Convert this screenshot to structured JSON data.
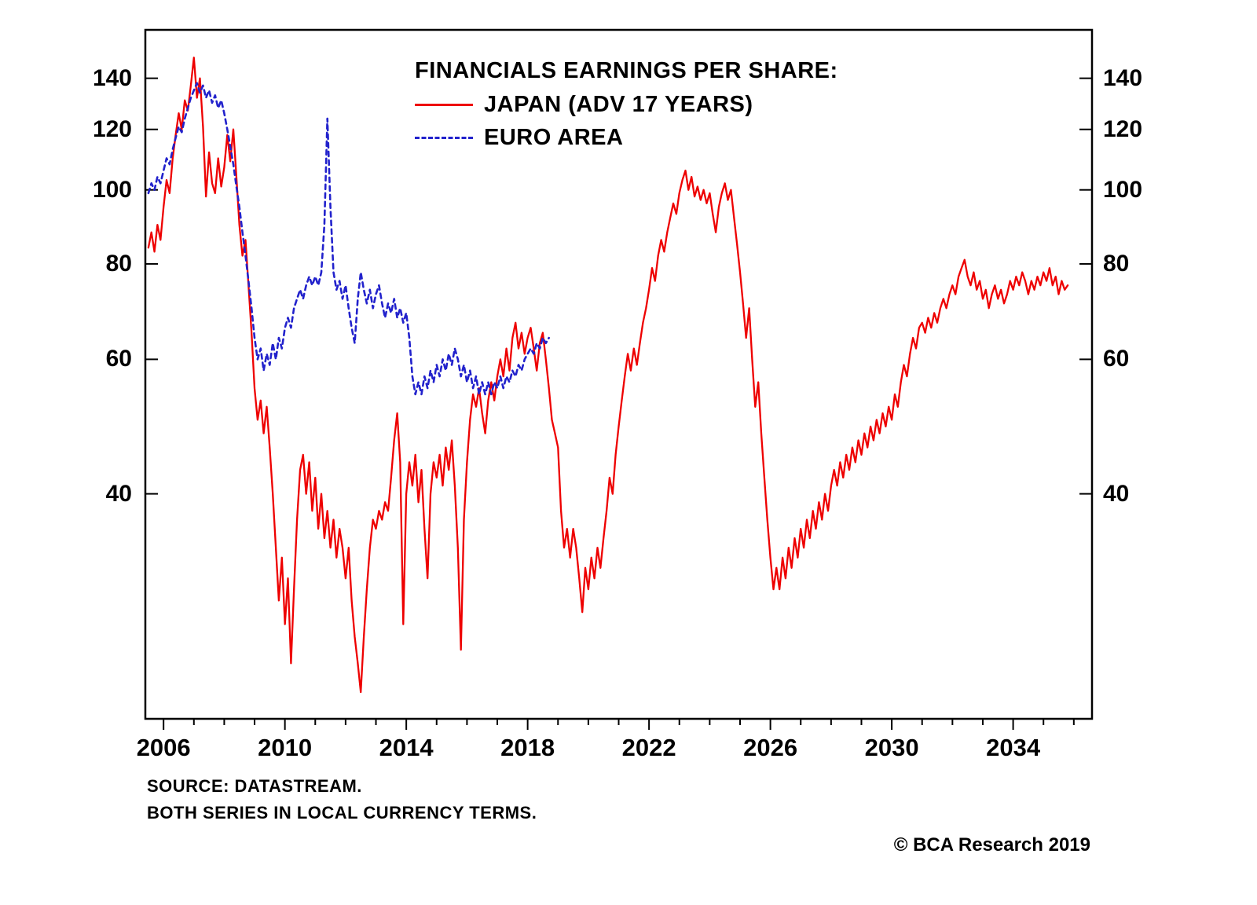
{
  "page": {
    "background": "#ffffff",
    "text_color": "#000000"
  },
  "legend": {
    "title": "FINANCIALS EARNINGS PER SHARE:",
    "series": [
      {
        "label": "JAPAN (ADV 17 YEARS)",
        "color": "#ee0000",
        "style": "solid"
      },
      {
        "label": "EURO AREA",
        "color": "#2222cc",
        "style": "dashed"
      }
    ]
  },
  "footer": {
    "source_line1": "SOURCE: DATASTREAM.",
    "source_line2": "BOTH SERIES IN LOCAL CURRENCY TERMS.",
    "copyright": "© BCA Research 2019"
  },
  "chart_data": {
    "type": "line",
    "title": "FINANCIALS EARNINGS PER SHARE:",
    "xlabel": "",
    "ylabel": "",
    "yscale": "log",
    "grid": false,
    "legend_position": "top-center-inside",
    "xlim": [
      2005.4,
      2036.6
    ],
    "ylim": [
      20.3,
      162
    ],
    "xticks": [
      2006,
      2010,
      2014,
      2018,
      2022,
      2026,
      2030,
      2034
    ],
    "yticks": [
      40,
      60,
      80,
      100,
      120,
      140
    ],
    "series": [
      {
        "key": "japan",
        "name": "JAPAN (ADV 17 YEARS)",
        "color": "#ee0000",
        "dash": null,
        "x_start": 2005.5,
        "x_step": 0.1,
        "values": [
          84,
          88,
          83,
          90,
          86,
          95,
          103,
          99,
          110,
          118,
          126,
          120,
          131,
          127,
          137,
          149,
          132,
          140,
          121,
          98,
          112,
          102,
          99,
          110,
          101,
          107,
          118,
          109,
          120,
          104,
          90,
          82,
          86,
          75,
          65,
          55,
          50,
          53,
          48,
          52,
          46,
          40,
          34,
          29,
          33,
          27,
          31,
          24,
          30,
          37,
          43,
          45,
          40,
          44,
          38,
          42,
          36,
          40,
          35,
          38,
          34,
          37,
          33,
          36,
          34,
          31,
          34,
          29,
          26,
          24,
          22,
          26,
          30,
          34,
          37,
          36,
          38,
          37,
          39,
          38,
          42,
          47,
          51,
          44,
          27,
          40,
          44,
          41,
          45,
          39,
          43,
          36,
          31,
          40,
          44,
          42,
          45,
          41,
          46,
          43,
          47,
          41,
          34,
          25,
          37,
          44,
          50,
          54,
          52,
          55,
          51,
          48,
          53,
          56,
          53,
          57,
          60,
          57,
          62,
          58,
          64,
          67,
          62,
          65,
          61,
          64,
          66,
          62,
          58,
          63,
          65,
          60,
          55,
          50,
          48,
          46,
          38,
          34,
          36,
          33,
          36,
          34,
          31,
          28,
          32,
          30,
          33,
          31,
          34,
          32,
          35,
          38,
          42,
          40,
          45,
          49,
          53,
          57,
          61,
          58,
          62,
          59,
          63,
          67,
          70,
          74,
          79,
          76,
          82,
          86,
          83,
          88,
          92,
          96,
          93,
          99,
          103,
          106,
          100,
          104,
          98,
          101,
          97,
          100,
          96,
          99,
          93,
          88,
          95,
          99,
          102,
          97,
          100,
          92,
          85,
          78,
          71,
          64,
          70,
          60,
          52,
          56,
          48,
          42,
          37,
          33,
          30,
          32,
          30,
          33,
          31,
          34,
          32,
          35,
          33,
          36,
          34,
          37,
          35,
          38,
          36,
          39,
          37,
          40,
          38,
          41,
          43,
          41,
          44,
          42,
          45,
          43,
          46,
          44,
          47,
          45,
          48,
          46,
          49,
          47,
          50,
          48,
          51,
          49,
          52,
          50,
          54,
          52,
          56,
          59,
          57,
          61,
          64,
          62,
          66,
          67,
          65,
          68,
          66,
          69,
          67,
          70,
          72,
          70,
          73,
          75,
          73,
          77,
          79,
          81,
          77,
          75,
          78,
          74,
          76,
          72,
          74,
          70,
          73,
          75,
          72,
          74,
          71,
          73,
          76,
          74,
          77,
          75,
          78,
          76,
          73,
          76,
          74,
          77,
          75,
          78,
          76,
          79,
          75,
          77,
          73,
          76,
          74,
          75
        ]
      },
      {
        "key": "euro_area",
        "name": "EURO AREA",
        "color": "#2222cc",
        "dash": "6 5",
        "x_start": 2005.5,
        "x_step": 0.1,
        "values": [
          99,
          102,
          100,
          104,
          102,
          106,
          110,
          108,
          113,
          117,
          121,
          119,
          124,
          128,
          132,
          135,
          138,
          134,
          137,
          132,
          135,
          130,
          133,
          128,
          131,
          126,
          120,
          114,
          108,
          101,
          95,
          88,
          82,
          76,
          70,
          64,
          60,
          62,
          58,
          61,
          59,
          63,
          60,
          64,
          62,
          66,
          68,
          66,
          70,
          72,
          74,
          72,
          75,
          77,
          75,
          77,
          75,
          78,
          90,
          124,
          95,
          78,
          74,
          76,
          72,
          75,
          70,
          66,
          63,
          72,
          78,
          74,
          71,
          74,
          70,
          73,
          75,
          71,
          68,
          71,
          69,
          72,
          68,
          70,
          67,
          69,
          64,
          57,
          54,
          56,
          54,
          57,
          55,
          58,
          56,
          59,
          57,
          60,
          58,
          61,
          59,
          62,
          60,
          57,
          59,
          56,
          58,
          55,
          57,
          54,
          56,
          54,
          56,
          54,
          56,
          55,
          57,
          55,
          57,
          56,
          58,
          57,
          59,
          58,
          60,
          61,
          62,
          61,
          63,
          62,
          64,
          63,
          64
        ]
      }
    ]
  }
}
